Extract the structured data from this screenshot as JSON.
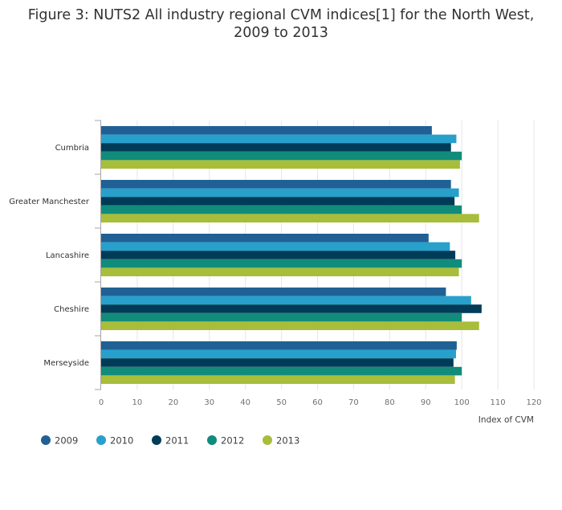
{
  "title_line1": "Figure 3: NUTS2 All industry regional CVM indices[1] for the North West,",
  "title_line2": "2009 to 2013",
  "chart_data": {
    "type": "bar",
    "orientation": "horizontal",
    "categories": [
      "Cumbria",
      "Greater Manchester",
      "Lancashire",
      "Cheshire",
      "Merseyside"
    ],
    "series": [
      {
        "name": "2009",
        "color": "#206095",
        "values": [
          91.7,
          97.0,
          90.8,
          95.6,
          98.6
        ]
      },
      {
        "name": "2010",
        "color": "#27a0cc",
        "values": [
          98.5,
          99.2,
          96.7,
          102.6,
          98.4
        ]
      },
      {
        "name": "2011",
        "color": "#003c57",
        "values": [
          97.0,
          98.0,
          98.2,
          105.5,
          97.7
        ]
      },
      {
        "name": "2012",
        "color": "#118c7b",
        "values": [
          100,
          100,
          100,
          100,
          100
        ]
      },
      {
        "name": "2013",
        "color": "#a8bd3a",
        "values": [
          99.5,
          104.8,
          99.2,
          104.8,
          98.1
        ]
      }
    ],
    "xlabel": "Index of CVM",
    "ylabel": "",
    "xlim": [
      0,
      120
    ],
    "xticks": [
      0,
      10,
      20,
      30,
      40,
      50,
      60,
      70,
      80,
      90,
      100,
      110,
      120
    ],
    "grid": true,
    "legend_position": "bottom-left"
  }
}
